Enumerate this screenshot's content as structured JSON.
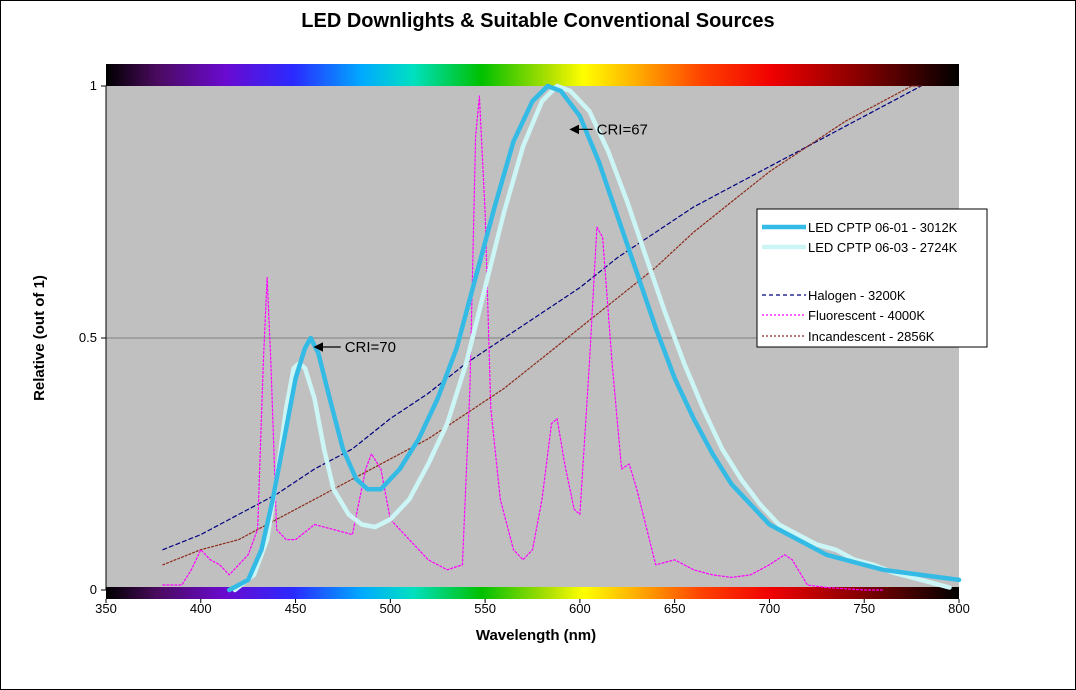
{
  "chart_data": {
    "type": "line",
    "title": "LED Downlights & Suitable Conventional Sources",
    "xlabel": "Wavelength (nm)",
    "ylabel": "Relative (out of 1)",
    "xlim": [
      350,
      800
    ],
    "ylim": [
      0,
      1
    ],
    "xticks": [
      350,
      400,
      450,
      500,
      550,
      600,
      650,
      700,
      750,
      800
    ],
    "yticks": [
      {
        "value": 0,
        "label": "0"
      },
      {
        "value": 0.5,
        "label": "0.5"
      },
      {
        "value": 1,
        "label": "1"
      }
    ],
    "grid": "horizontal",
    "legend_position": "right",
    "series": [
      {
        "name": "LED CPTP 06-01 - 3012K",
        "color": "#33bbe6",
        "style": "solid-thick",
        "points": [
          [
            415,
            0
          ],
          [
            425,
            0.02
          ],
          [
            432,
            0.08
          ],
          [
            438,
            0.18
          ],
          [
            445,
            0.32
          ],
          [
            450,
            0.42
          ],
          [
            455,
            0.48
          ],
          [
            458,
            0.5
          ],
          [
            462,
            0.47
          ],
          [
            468,
            0.38
          ],
          [
            475,
            0.28
          ],
          [
            482,
            0.22
          ],
          [
            488,
            0.2
          ],
          [
            495,
            0.2
          ],
          [
            505,
            0.24
          ],
          [
            515,
            0.3
          ],
          [
            525,
            0.38
          ],
          [
            535,
            0.48
          ],
          [
            545,
            0.62
          ],
          [
            555,
            0.76
          ],
          [
            565,
            0.89
          ],
          [
            575,
            0.97
          ],
          [
            583,
            1.0
          ],
          [
            590,
            0.99
          ],
          [
            600,
            0.94
          ],
          [
            610,
            0.85
          ],
          [
            620,
            0.74
          ],
          [
            630,
            0.63
          ],
          [
            640,
            0.52
          ],
          [
            650,
            0.42
          ],
          [
            660,
            0.34
          ],
          [
            670,
            0.27
          ],
          [
            680,
            0.21
          ],
          [
            690,
            0.17
          ],
          [
            700,
            0.13
          ],
          [
            710,
            0.11
          ],
          [
            720,
            0.09
          ],
          [
            730,
            0.07
          ],
          [
            740,
            0.06
          ],
          [
            750,
            0.05
          ],
          [
            760,
            0.04
          ],
          [
            770,
            0.035
          ],
          [
            780,
            0.03
          ],
          [
            790,
            0.025
          ],
          [
            800,
            0.02
          ]
        ]
      },
      {
        "name": "LED CPTP 06-03 - 2724K",
        "color": "#ccf5f6",
        "style": "solid-thick",
        "points": [
          [
            418,
            0
          ],
          [
            428,
            0.03
          ],
          [
            435,
            0.1
          ],
          [
            440,
            0.22
          ],
          [
            445,
            0.36
          ],
          [
            449,
            0.44
          ],
          [
            452,
            0.45
          ],
          [
            455,
            0.44
          ],
          [
            460,
            0.38
          ],
          [
            465,
            0.28
          ],
          [
            470,
            0.2
          ],
          [
            478,
            0.15
          ],
          [
            485,
            0.13
          ],
          [
            492,
            0.125
          ],
          [
            500,
            0.14
          ],
          [
            510,
            0.18
          ],
          [
            520,
            0.25
          ],
          [
            530,
            0.33
          ],
          [
            540,
            0.45
          ],
          [
            550,
            0.6
          ],
          [
            560,
            0.75
          ],
          [
            570,
            0.88
          ],
          [
            580,
            0.97
          ],
          [
            588,
            1.0
          ],
          [
            595,
            0.99
          ],
          [
            605,
            0.95
          ],
          [
            615,
            0.87
          ],
          [
            625,
            0.77
          ],
          [
            635,
            0.66
          ],
          [
            645,
            0.55
          ],
          [
            655,
            0.45
          ],
          [
            665,
            0.36
          ],
          [
            675,
            0.28
          ],
          [
            685,
            0.22
          ],
          [
            695,
            0.17
          ],
          [
            705,
            0.13
          ],
          [
            715,
            0.11
          ],
          [
            725,
            0.09
          ],
          [
            735,
            0.08
          ],
          [
            745,
            0.06
          ],
          [
            755,
            0.05
          ],
          [
            765,
            0.035
          ],
          [
            775,
            0.025
          ],
          [
            785,
            0.015
          ],
          [
            795,
            0.005
          ]
        ]
      },
      {
        "name": "Halogen - 3200K",
        "color": "#000080",
        "style": "dashed",
        "points": [
          [
            380,
            0.08
          ],
          [
            400,
            0.11
          ],
          [
            420,
            0.15
          ],
          [
            440,
            0.19
          ],
          [
            460,
            0.24
          ],
          [
            480,
            0.28
          ],
          [
            500,
            0.34
          ],
          [
            520,
            0.39
          ],
          [
            540,
            0.45
          ],
          [
            560,
            0.5
          ],
          [
            580,
            0.55
          ],
          [
            600,
            0.6
          ],
          [
            620,
            0.66
          ],
          [
            640,
            0.71
          ],
          [
            660,
            0.76
          ],
          [
            680,
            0.8
          ],
          [
            700,
            0.84
          ],
          [
            720,
            0.88
          ],
          [
            740,
            0.92
          ],
          [
            760,
            0.96
          ],
          [
            780,
            1.0
          ]
        ]
      },
      {
        "name": "Fluorescent - 4000K",
        "color": "#ff00ff",
        "style": "dotted",
        "points": [
          [
            380,
            0.01
          ],
          [
            390,
            0.01
          ],
          [
            395,
            0.04
          ],
          [
            400,
            0.08
          ],
          [
            405,
            0.06
          ],
          [
            410,
            0.05
          ],
          [
            415,
            0.03
          ],
          [
            420,
            0.05
          ],
          [
            425,
            0.07
          ],
          [
            430,
            0.12
          ],
          [
            433,
            0.45
          ],
          [
            435,
            0.62
          ],
          [
            437,
            0.45
          ],
          [
            440,
            0.12
          ],
          [
            445,
            0.1
          ],
          [
            450,
            0.1
          ],
          [
            460,
            0.13
          ],
          [
            470,
            0.12
          ],
          [
            480,
            0.11
          ],
          [
            487,
            0.24
          ],
          [
            490,
            0.27
          ],
          [
            495,
            0.24
          ],
          [
            500,
            0.14
          ],
          [
            510,
            0.1
          ],
          [
            520,
            0.06
          ],
          [
            530,
            0.04
          ],
          [
            538,
            0.05
          ],
          [
            542,
            0.4
          ],
          [
            545,
            0.9
          ],
          [
            547,
            0.98
          ],
          [
            550,
            0.75
          ],
          [
            553,
            0.36
          ],
          [
            558,
            0.18
          ],
          [
            565,
            0.08
          ],
          [
            570,
            0.06
          ],
          [
            575,
            0.08
          ],
          [
            580,
            0.18
          ],
          [
            585,
            0.33
          ],
          [
            588,
            0.34
          ],
          [
            592,
            0.25
          ],
          [
            597,
            0.16
          ],
          [
            600,
            0.15
          ],
          [
            605,
            0.45
          ],
          [
            609,
            0.72
          ],
          [
            612,
            0.7
          ],
          [
            617,
            0.45
          ],
          [
            622,
            0.24
          ],
          [
            626,
            0.25
          ],
          [
            630,
            0.2
          ],
          [
            640,
            0.05
          ],
          [
            650,
            0.06
          ],
          [
            660,
            0.04
          ],
          [
            670,
            0.03
          ],
          [
            680,
            0.025
          ],
          [
            690,
            0.03
          ],
          [
            700,
            0.05
          ],
          [
            708,
            0.07
          ],
          [
            712,
            0.06
          ],
          [
            720,
            0.01
          ],
          [
            730,
            0.005
          ],
          [
            750,
            0
          ],
          [
            760,
            0
          ]
        ]
      },
      {
        "name": "Incandescent - 2856K",
        "color": "#8b2a1a",
        "style": "dotted",
        "points": [
          [
            380,
            0.05
          ],
          [
            400,
            0.08
          ],
          [
            420,
            0.1
          ],
          [
            440,
            0.14
          ],
          [
            460,
            0.18
          ],
          [
            480,
            0.22
          ],
          [
            500,
            0.26
          ],
          [
            520,
            0.3
          ],
          [
            540,
            0.35
          ],
          [
            560,
            0.4
          ],
          [
            580,
            0.46
          ],
          [
            600,
            0.52
          ],
          [
            620,
            0.58
          ],
          [
            640,
            0.64
          ],
          [
            660,
            0.71
          ],
          [
            680,
            0.77
          ],
          [
            700,
            0.83
          ],
          [
            720,
            0.88
          ],
          [
            740,
            0.93
          ],
          [
            760,
            0.97
          ],
          [
            775,
            1.0
          ],
          [
            780,
            1.0
          ]
        ]
      }
    ],
    "annotations": [
      {
        "text": "CRI=70",
        "target": [
          458,
          0.5
        ]
      },
      {
        "text": "CRI=67",
        "target": [
          593,
          0.9
        ]
      }
    ],
    "spectrum_bars": true
  }
}
